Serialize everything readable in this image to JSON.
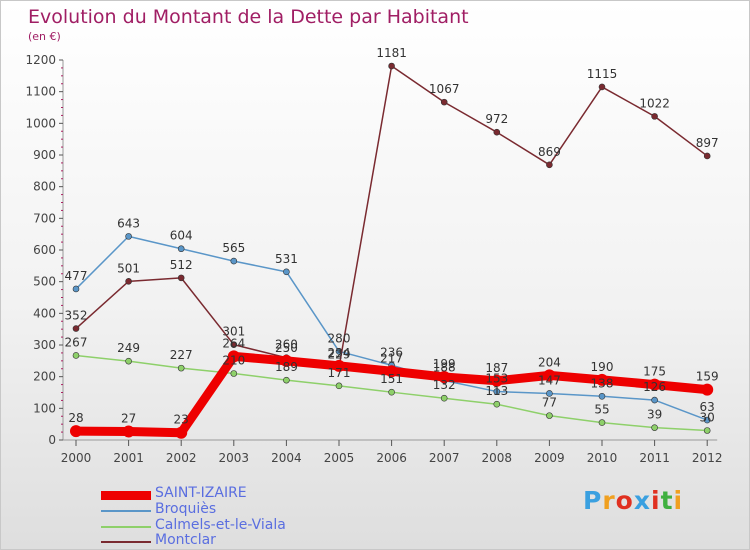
{
  "title": "Evolution du Montant de la Dette par Habitant",
  "subtitle": "(en €)",
  "logo": {
    "text": "Proxiti",
    "letter_colors": [
      "#3aa0e0",
      "#f0a020",
      "#e03020",
      "#3aa0e0",
      "#e03020",
      "#40b040",
      "#f0a020"
    ]
  },
  "chart_data": {
    "type": "line",
    "x": [
      "2000",
      "2001",
      "2002",
      "2003",
      "2004",
      "2005",
      "2006",
      "2007",
      "2008",
      "2009",
      "2010",
      "2011",
      "2012"
    ],
    "ylim": [
      0,
      1200
    ],
    "yticks": [
      0,
      100,
      200,
      300,
      400,
      500,
      600,
      700,
      800,
      900,
      1000,
      1100,
      1200
    ],
    "grid": false,
    "legend_position": "bottom-left",
    "series": [
      {
        "name": "SAINT-IZAIRE",
        "color": "#ee0000",
        "values": [
          28,
          27,
          23,
          264,
          250,
          234,
          217,
          199,
          187,
          204,
          190,
          175,
          159
        ]
      },
      {
        "name": "Broquiès",
        "color": "#5a96c8",
        "values": [
          477,
          643,
          604,
          565,
          531,
          280,
          236,
          188,
          153,
          147,
          138,
          126,
          63
        ]
      },
      {
        "name": "Calmels-et-le-Viala",
        "color": "#8ed06a",
        "values": [
          267,
          249,
          227,
          210,
          189,
          171,
          151,
          132,
          113,
          77,
          55,
          39,
          30
        ]
      },
      {
        "name": "Montclar",
        "color": "#7a2a30",
        "values": [
          352,
          501,
          512,
          301,
          260,
          229,
          1181,
          1067,
          972,
          869,
          1115,
          1022,
          897
        ]
      }
    ]
  }
}
